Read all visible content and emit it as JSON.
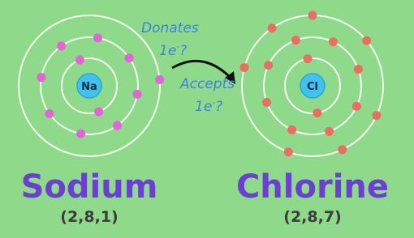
{
  "sodium": {
    "symbol": "Na",
    "name": "Sodium",
    "configuration": "(2,8,1)"
  },
  "chlorine": {
    "symbol": "Cl",
    "name": "Chlorine",
    "configuration": "(2,8,7)"
  },
  "donates": {
    "text": "Donates",
    "base": "1e",
    "sup": "-",
    "end": "?"
  },
  "accepts": {
    "text": "Accepts",
    "base": "1e",
    "sup": "-",
    "end": "?"
  }
}
